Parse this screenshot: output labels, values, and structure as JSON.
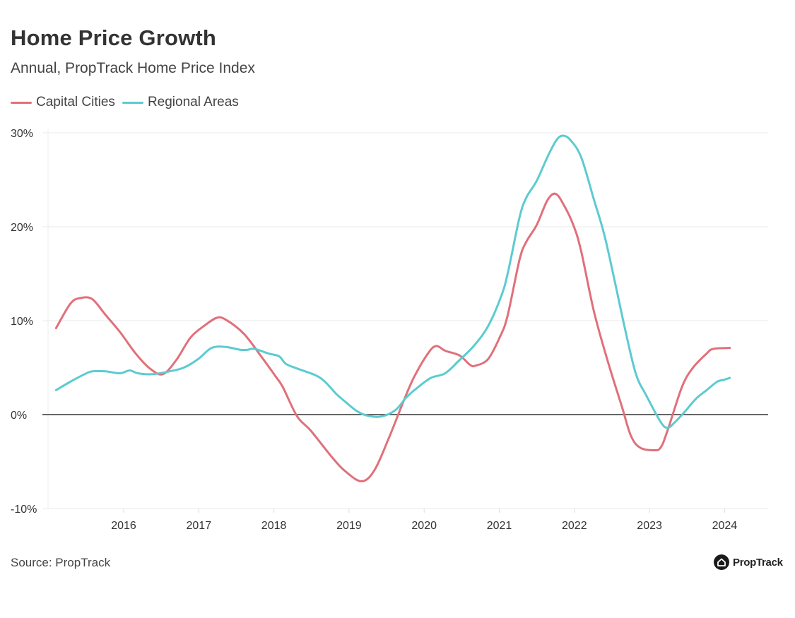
{
  "chart_data": {
    "type": "line",
    "title": "Home Price Growth",
    "subtitle": "Annual, PropTrack Home Price Index",
    "xlabel": "",
    "ylabel": "",
    "xlim": [
      2015.0,
      2024.6
    ],
    "ylim": [
      -10,
      30
    ],
    "grid": true,
    "legend_placement": "top-left",
    "x_ticks": [
      {
        "value": 2016,
        "label": "2016"
      },
      {
        "value": 2017,
        "label": "2017"
      },
      {
        "value": 2018,
        "label": "2018"
      },
      {
        "value": 2019,
        "label": "2019"
      },
      {
        "value": 2020,
        "label": "2020"
      },
      {
        "value": 2021,
        "label": "2021"
      },
      {
        "value": 2022,
        "label": "2022"
      },
      {
        "value": 2023,
        "label": "2023"
      },
      {
        "value": 2024,
        "label": "2024"
      }
    ],
    "y_ticks": [
      {
        "value": 30,
        "label": "30%"
      },
      {
        "value": 20,
        "label": "20%"
      },
      {
        "value": 10,
        "label": "10%"
      },
      {
        "value": 0,
        "label": "0%"
      },
      {
        "value": -10,
        "label": "-10%"
      }
    ],
    "series": [
      {
        "name": "Capital Cities",
        "color": "#e0707a",
        "points": [
          [
            2015.1,
            9.2
          ],
          [
            2015.29,
            11.8
          ],
          [
            2015.42,
            12.4
          ],
          [
            2015.58,
            12.3
          ],
          [
            2015.76,
            10.6
          ],
          [
            2015.95,
            8.8
          ],
          [
            2016.16,
            6.5
          ],
          [
            2016.35,
            4.9
          ],
          [
            2016.52,
            4.3
          ],
          [
            2016.7,
            5.8
          ],
          [
            2016.89,
            8.2
          ],
          [
            2017.08,
            9.5
          ],
          [
            2017.24,
            10.3
          ],
          [
            2017.36,
            10.1
          ],
          [
            2017.6,
            8.6
          ],
          [
            2017.83,
            6.2
          ],
          [
            2018.02,
            4.1
          ],
          [
            2018.12,
            2.9
          ],
          [
            2018.31,
            -0.2
          ],
          [
            2018.49,
            -1.7
          ],
          [
            2018.78,
            -4.6
          ],
          [
            2018.96,
            -6.1
          ],
          [
            2019.17,
            -7.1
          ],
          [
            2019.34,
            -5.9
          ],
          [
            2019.53,
            -2.5
          ],
          [
            2019.72,
            1.3
          ],
          [
            2019.86,
            3.9
          ],
          [
            2020.05,
            6.5
          ],
          [
            2020.16,
            7.3
          ],
          [
            2020.28,
            6.8
          ],
          [
            2020.47,
            6.3
          ],
          [
            2020.61,
            5.3
          ],
          [
            2020.68,
            5.2
          ],
          [
            2020.85,
            5.9
          ],
          [
            2021.01,
            8.3
          ],
          [
            2021.11,
            10.5
          ],
          [
            2021.27,
            16.5
          ],
          [
            2021.36,
            18.4
          ],
          [
            2021.5,
            20.2
          ],
          [
            2021.64,
            22.8
          ],
          [
            2021.75,
            23.5
          ],
          [
            2021.86,
            22.3
          ],
          [
            2021.99,
            20.1
          ],
          [
            2022.09,
            17.4
          ],
          [
            2022.26,
            11.0
          ],
          [
            2022.44,
            5.8
          ],
          [
            2022.63,
            0.9
          ],
          [
            2022.75,
            -2.2
          ],
          [
            2022.87,
            -3.5
          ],
          [
            2023.06,
            -3.8
          ],
          [
            2023.15,
            -3.5
          ],
          [
            2023.24,
            -1.7
          ],
          [
            2023.43,
            2.9
          ],
          [
            2023.57,
            4.9
          ],
          [
            2023.76,
            6.5
          ],
          [
            2023.85,
            7.0
          ],
          [
            2024.07,
            7.1
          ]
        ]
      },
      {
        "name": "Regional Areas",
        "color": "#5ccbd0",
        "points": [
          [
            2015.1,
            2.6
          ],
          [
            2015.29,
            3.5
          ],
          [
            2015.48,
            4.3
          ],
          [
            2015.58,
            4.6
          ],
          [
            2015.76,
            4.6
          ],
          [
            2015.95,
            4.4
          ],
          [
            2016.08,
            4.7
          ],
          [
            2016.19,
            4.4
          ],
          [
            2016.38,
            4.3
          ],
          [
            2016.61,
            4.6
          ],
          [
            2016.8,
            5.0
          ],
          [
            2016.99,
            5.9
          ],
          [
            2017.17,
            7.1
          ],
          [
            2017.36,
            7.2
          ],
          [
            2017.55,
            6.9
          ],
          [
            2017.65,
            6.9
          ],
          [
            2017.74,
            7.0
          ],
          [
            2017.93,
            6.5
          ],
          [
            2018.07,
            6.2
          ],
          [
            2018.16,
            5.4
          ],
          [
            2018.31,
            4.9
          ],
          [
            2018.55,
            4.2
          ],
          [
            2018.68,
            3.5
          ],
          [
            2018.83,
            2.2
          ],
          [
            2018.96,
            1.3
          ],
          [
            2019.1,
            0.4
          ],
          [
            2019.24,
            -0.1
          ],
          [
            2019.43,
            -0.2
          ],
          [
            2019.62,
            0.5
          ],
          [
            2019.76,
            1.8
          ],
          [
            2019.9,
            2.8
          ],
          [
            2020.09,
            3.9
          ],
          [
            2020.28,
            4.4
          ],
          [
            2020.47,
            5.8
          ],
          [
            2020.66,
            7.3
          ],
          [
            2020.85,
            9.4
          ],
          [
            2021.03,
            12.7
          ],
          [
            2021.12,
            15.3
          ],
          [
            2021.27,
            21.0
          ],
          [
            2021.36,
            23.1
          ],
          [
            2021.5,
            24.9
          ],
          [
            2021.64,
            27.4
          ],
          [
            2021.76,
            29.2
          ],
          [
            2021.85,
            29.7
          ],
          [
            2021.95,
            29.2
          ],
          [
            2022.09,
            27.4
          ],
          [
            2022.26,
            22.9
          ],
          [
            2022.4,
            19.1
          ],
          [
            2022.54,
            14.1
          ],
          [
            2022.68,
            8.9
          ],
          [
            2022.82,
            4.3
          ],
          [
            2022.96,
            2.0
          ],
          [
            2023.15,
            -0.8
          ],
          [
            2023.24,
            -1.4
          ],
          [
            2023.34,
            -0.8
          ],
          [
            2023.48,
            0.4
          ],
          [
            2023.62,
            1.7
          ],
          [
            2023.76,
            2.6
          ],
          [
            2023.9,
            3.5
          ],
          [
            2023.99,
            3.7
          ],
          [
            2024.07,
            3.9
          ]
        ]
      }
    ]
  },
  "footer": {
    "source": "Source: PropTrack",
    "logo_text": "PropTrack"
  }
}
